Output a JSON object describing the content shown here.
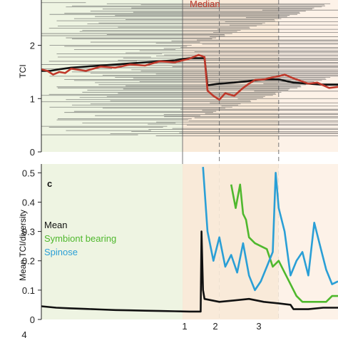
{
  "chart_data": [
    {
      "type": "line",
      "ylabel": "TCI",
      "ylim": [
        0,
        2.85
      ],
      "yticks": [
        0,
        1,
        2
      ],
      "legend": [
        {
          "name": "Median",
          "color": "#c0392b"
        }
      ],
      "background_hlines_y": [
        2.8,
        2.78,
        2.76,
        2.74,
        2.72,
        2.7,
        2.68,
        2.66,
        2.64,
        2.62,
        2.6,
        2.58,
        2.56,
        2.54,
        2.52,
        2.5,
        2.48,
        2.46,
        2.44,
        2.42,
        2.4,
        2.38,
        2.36,
        2.34,
        2.32,
        2.3,
        2.28,
        2.26,
        2.24,
        2.22,
        2.2,
        2.18,
        2.16,
        2.14,
        2.12,
        2.1,
        2.08,
        2.06,
        2.04,
        2.02,
        2.0,
        1.98,
        1.96,
        1.94,
        1.92,
        1.9,
        1.88,
        1.86,
        1.84,
        1.82,
        1.8,
        1.78,
        1.76,
        1.74,
        1.72,
        1.7,
        1.68,
        1.66,
        1.64,
        1.62,
        1.6,
        1.58,
        1.56,
        1.54,
        1.52,
        1.5,
        1.48,
        1.46,
        1.44,
        1.42,
        1.4,
        1.38,
        1.36,
        1.34,
        1.32,
        1.3,
        1.28,
        1.26,
        1.24,
        1.22,
        1.2,
        1.18,
        1.16,
        1.14,
        1.12,
        1.1,
        1.08,
        1.06,
        1.04,
        1.02,
        1.0,
        0.98,
        0.96,
        0.94,
        0.92,
        0.9,
        0.88,
        0.86,
        0.84,
        0.82,
        0.8,
        0.78,
        0.76,
        0.74,
        0.72,
        0.7,
        0.68,
        0.66,
        0.64,
        0.62,
        0.6,
        0.58,
        0.56,
        0.54,
        0.52,
        0.5,
        0.48,
        0.46,
        0.44,
        0.42,
        0.4,
        0.38,
        0.36,
        0.34,
        0.32,
        0.3
      ],
      "series": [
        {
          "color": "#111111",
          "x": [
            0,
            0.03,
            0.06,
            0.1,
            0.15,
            0.2,
            0.25,
            0.3,
            0.35,
            0.4,
            0.45,
            0.5,
            0.53,
            0.55,
            0.56,
            0.6,
            0.65,
            0.7,
            0.75,
            0.8,
            0.85,
            0.9,
            0.95,
            1.0
          ],
          "y": [
            1.52,
            1.52,
            1.55,
            1.58,
            1.6,
            1.62,
            1.64,
            1.66,
            1.68,
            1.7,
            1.72,
            1.76,
            1.76,
            1.76,
            1.25,
            1.28,
            1.3,
            1.33,
            1.36,
            1.36,
            1.3,
            1.28,
            1.26,
            1.26
          ]
        },
        {
          "name": "Median",
          "color": "#c0392b",
          "x": [
            0,
            0.02,
            0.04,
            0.06,
            0.08,
            0.1,
            0.15,
            0.2,
            0.25,
            0.3,
            0.35,
            0.4,
            0.45,
            0.5,
            0.53,
            0.55,
            0.56,
            0.58,
            0.6,
            0.62,
            0.65,
            0.68,
            0.7,
            0.72,
            0.75,
            0.78,
            0.8,
            0.82,
            0.85,
            0.88,
            0.9,
            0.93,
            0.95,
            0.97,
            1.0
          ],
          "y": [
            1.55,
            1.52,
            1.45,
            1.5,
            1.48,
            1.56,
            1.52,
            1.6,
            1.58,
            1.64,
            1.62,
            1.7,
            1.68,
            1.75,
            1.82,
            1.78,
            1.15,
            1.05,
            0.98,
            1.1,
            1.05,
            1.2,
            1.28,
            1.35,
            1.36,
            1.4,
            1.42,
            1.45,
            1.38,
            1.32,
            1.28,
            1.3,
            1.25,
            1.2,
            1.22
          ]
        }
      ],
      "zones": [
        "#eef4e2",
        "#f9ead9",
        "#f9ead9",
        "#fdf2e8"
      ]
    },
    {
      "type": "line",
      "panel_label": "c",
      "ylabel": "Mean TCI/diversity",
      "ylim": [
        0,
        0.53
      ],
      "yticks": [
        0,
        0.1,
        0.2,
        0.3,
        0.4,
        0.5
      ],
      "ytick_labels": [
        "0",
        "0.1",
        "0.2",
        "0.3",
        "0.4",
        "0.5"
      ],
      "xtick_labels": [
        "1",
        "2",
        "3"
      ],
      "bottom_tick_label": "4",
      "legend": [
        {
          "name": "Mean",
          "color": "#111111"
        },
        {
          "name": "Symbiont bearing",
          "color": "#4fb82d"
        },
        {
          "name": "Spinose",
          "color": "#2a9fd6"
        }
      ],
      "series": [
        {
          "name": "Mean",
          "color": "#111111",
          "x": [
            0,
            0.05,
            0.1,
            0.15,
            0.2,
            0.25,
            0.3,
            0.35,
            0.4,
            0.45,
            0.5,
            0.52,
            0.537,
            0.54,
            0.545,
            0.55,
            0.6,
            0.65,
            0.7,
            0.75,
            0.8,
            0.84,
            0.85,
            0.9,
            0.95,
            1.0
          ],
          "y": [
            0.045,
            0.04,
            0.038,
            0.036,
            0.034,
            0.032,
            0.031,
            0.03,
            0.029,
            0.028,
            0.027,
            0.027,
            0.027,
            0.3,
            0.1,
            0.07,
            0.06,
            0.065,
            0.07,
            0.06,
            0.055,
            0.05,
            0.035,
            0.035,
            0.04,
            0.04
          ]
        },
        {
          "name": "Symbiont bearing",
          "color": "#4fb82d",
          "x": [
            0.64,
            0.655,
            0.67,
            0.68,
            0.69,
            0.7,
            0.72,
            0.74,
            0.76,
            0.78,
            0.8,
            0.82,
            0.84,
            0.86,
            0.88,
            0.9,
            0.93,
            0.96,
            0.98,
            1.0
          ],
          "y": [
            0.46,
            0.38,
            0.46,
            0.36,
            0.34,
            0.28,
            0.26,
            0.25,
            0.24,
            0.18,
            0.2,
            0.16,
            0.12,
            0.08,
            0.06,
            0.06,
            0.06,
            0.06,
            0.08,
            0.08
          ]
        },
        {
          "name": "Spinose",
          "color": "#2a9fd6",
          "x": [
            0.545,
            0.56,
            0.58,
            0.6,
            0.62,
            0.64,
            0.66,
            0.68,
            0.7,
            0.72,
            0.74,
            0.76,
            0.78,
            0.79,
            0.8,
            0.82,
            0.84,
            0.86,
            0.88,
            0.9,
            0.92,
            0.94,
            0.96,
            0.98,
            1.0
          ],
          "y": [
            0.52,
            0.3,
            0.2,
            0.28,
            0.18,
            0.22,
            0.16,
            0.26,
            0.15,
            0.1,
            0.13,
            0.18,
            0.23,
            0.5,
            0.38,
            0.3,
            0.15,
            0.2,
            0.23,
            0.15,
            0.33,
            0.25,
            0.17,
            0.12,
            0.13
          ]
        }
      ],
      "zones": [
        "#eef4e2",
        "#f9ead9",
        "#f9ead9",
        "#fdf2e8"
      ]
    }
  ]
}
